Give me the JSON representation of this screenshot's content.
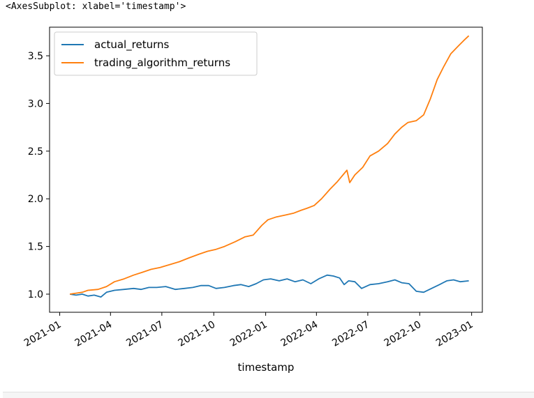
{
  "output_repr": "<AxesSubplot: xlabel='timestamp'>",
  "chart_data": {
    "type": "line",
    "xlabel": "timestamp",
    "ylabel": "",
    "ylim": [
      0.81,
      3.8
    ],
    "xlim": [
      "2020-12-14",
      "2023-01-20"
    ],
    "x_tick_labels": [
      "2021-01",
      "2021-04",
      "2021-07",
      "2021-10",
      "2022-01",
      "2022-04",
      "2022-07",
      "2022-10",
      "2023-01"
    ],
    "x_tick_dates": [
      "2021-01-01",
      "2021-04-01",
      "2021-07-01",
      "2021-10-01",
      "2022-01-01",
      "2022-04-01",
      "2022-07-01",
      "2022-10-01",
      "2023-01-01"
    ],
    "y_ticks": [
      1.0,
      1.5,
      2.0,
      2.5,
      3.0,
      3.5
    ],
    "y_tick_labels": [
      "1.0",
      "1.5",
      "2.0",
      "2.5",
      "3.0",
      "3.5"
    ],
    "grid": false,
    "legend_position": "top-left",
    "series": [
      {
        "name": "actual_returns",
        "color": "#1f77b4",
        "points": [
          [
            "2021-01-19",
            1.0
          ],
          [
            "2021-01-30",
            0.99
          ],
          [
            "2021-02-10",
            1.0
          ],
          [
            "2021-02-20",
            0.98
          ],
          [
            "2021-03-03",
            0.99
          ],
          [
            "2021-03-15",
            0.97
          ],
          [
            "2021-03-25",
            1.02
          ],
          [
            "2021-04-08",
            1.04
          ],
          [
            "2021-04-25",
            1.05
          ],
          [
            "2021-05-12",
            1.06
          ],
          [
            "2021-05-25",
            1.05
          ],
          [
            "2021-06-08",
            1.07
          ],
          [
            "2021-06-22",
            1.07
          ],
          [
            "2021-07-08",
            1.08
          ],
          [
            "2021-07-25",
            1.05
          ],
          [
            "2021-08-10",
            1.06
          ],
          [
            "2021-08-25",
            1.07
          ],
          [
            "2021-09-08",
            1.09
          ],
          [
            "2021-09-22",
            1.09
          ],
          [
            "2021-10-05",
            1.06
          ],
          [
            "2021-10-20",
            1.07
          ],
          [
            "2021-11-05",
            1.09
          ],
          [
            "2021-11-18",
            1.1
          ],
          [
            "2021-12-02",
            1.08
          ],
          [
            "2021-12-15",
            1.11
          ],
          [
            "2021-12-28",
            1.15
          ],
          [
            "2022-01-10",
            1.16
          ],
          [
            "2022-01-25",
            1.14
          ],
          [
            "2022-02-08",
            1.16
          ],
          [
            "2022-02-22",
            1.13
          ],
          [
            "2022-03-08",
            1.15
          ],
          [
            "2022-03-22",
            1.11
          ],
          [
            "2022-04-05",
            1.16
          ],
          [
            "2022-04-20",
            1.2
          ],
          [
            "2022-05-01",
            1.19
          ],
          [
            "2022-05-12",
            1.17
          ],
          [
            "2022-05-20",
            1.1
          ],
          [
            "2022-05-28",
            1.14
          ],
          [
            "2022-06-08",
            1.13
          ],
          [
            "2022-06-20",
            1.06
          ],
          [
            "2022-07-05",
            1.1
          ],
          [
            "2022-07-20",
            1.11
          ],
          [
            "2022-08-05",
            1.13
          ],
          [
            "2022-08-18",
            1.15
          ],
          [
            "2022-08-30",
            1.12
          ],
          [
            "2022-09-12",
            1.11
          ],
          [
            "2022-09-25",
            1.03
          ],
          [
            "2022-10-08",
            1.02
          ],
          [
            "2022-10-22",
            1.06
          ],
          [
            "2022-11-05",
            1.1
          ],
          [
            "2022-11-18",
            1.14
          ],
          [
            "2022-11-30",
            1.15
          ],
          [
            "2022-12-12",
            1.13
          ],
          [
            "2022-12-27",
            1.14
          ]
        ]
      },
      {
        "name": "trading_algorithm_returns",
        "color": "#ff7f0e",
        "points": [
          [
            "2021-01-19",
            1.0
          ],
          [
            "2021-01-30",
            1.01
          ],
          [
            "2021-02-10",
            1.02
          ],
          [
            "2021-02-20",
            1.04
          ],
          [
            "2021-03-10",
            1.05
          ],
          [
            "2021-03-25",
            1.08
          ],
          [
            "2021-04-08",
            1.13
          ],
          [
            "2021-04-25",
            1.16
          ],
          [
            "2021-05-12",
            1.2
          ],
          [
            "2021-05-28",
            1.23
          ],
          [
            "2021-06-12",
            1.26
          ],
          [
            "2021-06-28",
            1.28
          ],
          [
            "2021-07-15",
            1.31
          ],
          [
            "2021-08-01",
            1.34
          ],
          [
            "2021-08-18",
            1.38
          ],
          [
            "2021-09-05",
            1.42
          ],
          [
            "2021-09-20",
            1.45
          ],
          [
            "2021-10-05",
            1.47
          ],
          [
            "2021-10-20",
            1.5
          ],
          [
            "2021-11-08",
            1.55
          ],
          [
            "2021-11-25",
            1.6
          ],
          [
            "2021-12-10",
            1.62
          ],
          [
            "2021-12-25",
            1.72
          ],
          [
            "2022-01-05",
            1.78
          ],
          [
            "2022-01-20",
            1.81
          ],
          [
            "2022-02-05",
            1.83
          ],
          [
            "2022-02-20",
            1.85
          ],
          [
            "2022-03-05",
            1.88
          ],
          [
            "2022-03-15",
            1.9
          ],
          [
            "2022-03-28",
            1.93
          ],
          [
            "2022-04-10",
            2.0
          ],
          [
            "2022-04-25",
            2.1
          ],
          [
            "2022-05-08",
            2.18
          ],
          [
            "2022-05-18",
            2.25
          ],
          [
            "2022-05-25",
            2.3
          ],
          [
            "2022-05-30",
            2.17
          ],
          [
            "2022-06-08",
            2.25
          ],
          [
            "2022-06-22",
            2.33
          ],
          [
            "2022-07-05",
            2.45
          ],
          [
            "2022-07-20",
            2.5
          ],
          [
            "2022-08-05",
            2.58
          ],
          [
            "2022-08-18",
            2.68
          ],
          [
            "2022-08-30",
            2.75
          ],
          [
            "2022-09-10",
            2.8
          ],
          [
            "2022-09-25",
            2.82
          ],
          [
            "2022-10-08",
            2.88
          ],
          [
            "2022-10-20",
            3.05
          ],
          [
            "2022-11-01",
            3.25
          ],
          [
            "2022-11-12",
            3.38
          ],
          [
            "2022-11-25",
            3.52
          ],
          [
            "2022-12-08",
            3.6
          ],
          [
            "2022-12-18",
            3.66
          ],
          [
            "2022-12-27",
            3.71
          ]
        ]
      }
    ]
  },
  "colors": {
    "actual_returns": "#1f77b4",
    "trading_algorithm_returns": "#ff7f0e",
    "axes": "#000000",
    "legend_border": "#cccccc"
  }
}
